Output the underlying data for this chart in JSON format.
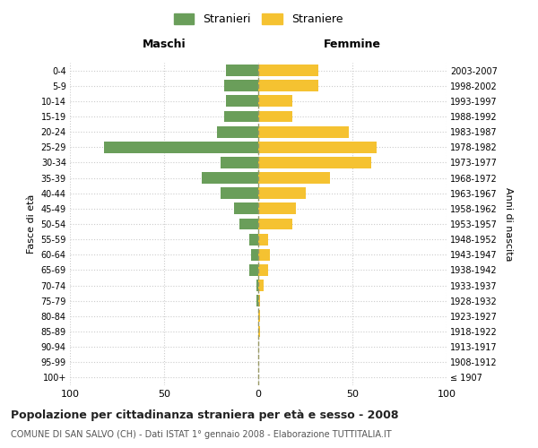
{
  "age_groups": [
    "100+",
    "95-99",
    "90-94",
    "85-89",
    "80-84",
    "75-79",
    "70-74",
    "65-69",
    "60-64",
    "55-59",
    "50-54",
    "45-49",
    "40-44",
    "35-39",
    "30-34",
    "25-29",
    "20-24",
    "15-19",
    "10-14",
    "5-9",
    "0-4"
  ],
  "birth_years": [
    "≤ 1907",
    "1908-1912",
    "1913-1917",
    "1918-1922",
    "1923-1927",
    "1928-1932",
    "1933-1937",
    "1938-1942",
    "1943-1947",
    "1948-1952",
    "1953-1957",
    "1958-1962",
    "1963-1967",
    "1968-1972",
    "1973-1977",
    "1978-1982",
    "1983-1987",
    "1988-1992",
    "1993-1997",
    "1998-2002",
    "2003-2007"
  ],
  "males": [
    0,
    0,
    0,
    0,
    0,
    1,
    1,
    5,
    4,
    5,
    10,
    13,
    20,
    30,
    20,
    82,
    22,
    18,
    17,
    18,
    17
  ],
  "females": [
    0,
    0,
    0,
    1,
    1,
    1,
    3,
    5,
    6,
    5,
    18,
    20,
    25,
    38,
    60,
    63,
    48,
    18,
    18,
    32,
    32
  ],
  "male_color": "#6a9e5a",
  "female_color": "#f5c231",
  "background_color": "#ffffff",
  "grid_color": "#cccccc",
  "center_line_color": "#999966",
  "title_main": "Popolazione per cittadinanza straniera per età e sesso - 2008",
  "title_sub": "COMUNE DI SAN SALVO (CH) - Dati ISTAT 1° gennaio 2008 - Elaborazione TUTTITALIA.IT",
  "xlabel_left": "Maschi",
  "xlabel_right": "Femmine",
  "ylabel_left": "Fasce di età",
  "ylabel_right": "Anni di nascita",
  "legend_male": "Stranieri",
  "legend_female": "Straniere",
  "xlim": 100
}
